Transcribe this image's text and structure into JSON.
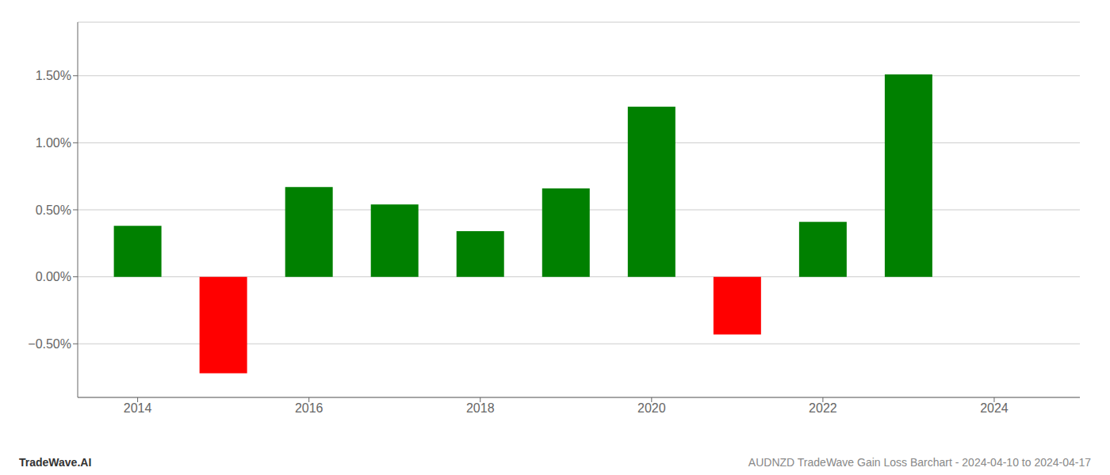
{
  "chart_data": {
    "type": "bar",
    "title": "AUDNZD TradeWave Gain Loss Barchart - 2024-04-10 to 2024-04-17",
    "annotations": [
      "TradeWave.AI"
    ],
    "x": [
      2014,
      2015,
      2016,
      2017,
      2018,
      2019,
      2020,
      2021,
      2022,
      2023
    ],
    "values": [
      0.0038,
      -0.0072,
      0.0067,
      0.0054,
      0.0034,
      0.0066,
      0.0127,
      -0.0043,
      0.0041,
      0.0151
    ],
    "colors": [
      "#008000",
      "#ff0000",
      "#008000",
      "#008000",
      "#008000",
      "#008000",
      "#008000",
      "#ff0000",
      "#008000",
      "#008000"
    ],
    "xlim": [
      2013.3,
      2025.0
    ],
    "xticks": [
      2014,
      2016,
      2018,
      2020,
      2022,
      2024
    ],
    "ylim": [
      -0.009,
      0.019
    ],
    "yticks": [
      {
        "value": -0.005,
        "label": "−0.50%"
      },
      {
        "value": 0.0,
        "label": "0.00%"
      },
      {
        "value": 0.005,
        "label": "0.50%"
      },
      {
        "value": 0.01,
        "label": "1.00%"
      },
      {
        "value": 0.015,
        "label": "1.50%"
      }
    ],
    "grid": true
  }
}
